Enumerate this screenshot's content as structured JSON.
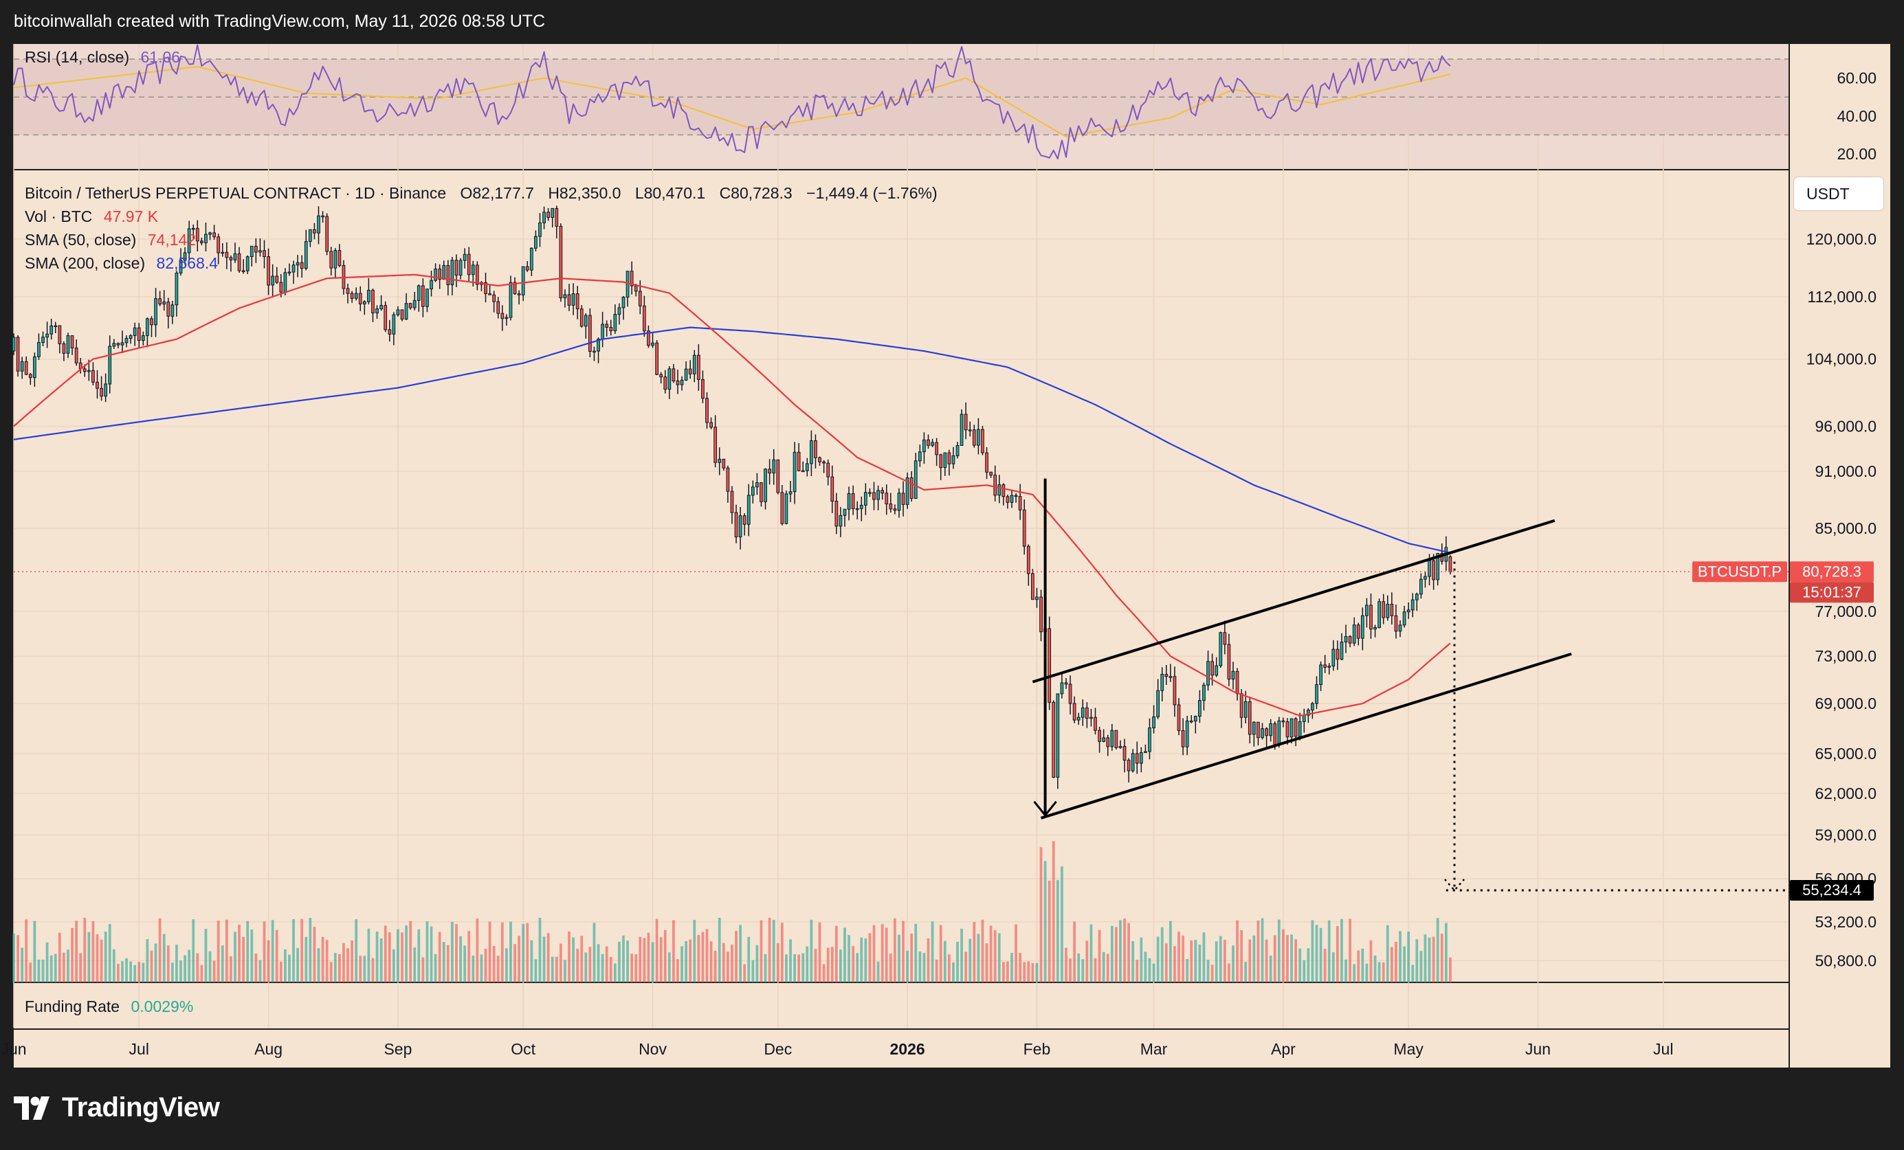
{
  "header": {
    "attribution": "bitcoinwallah created with TradingView.com, May 11, 2026 08:58 UTC"
  },
  "colors": {
    "background": "#f5e4d2",
    "up": "#26a69a",
    "down": "#ef5350",
    "sma50": "#e8383d",
    "sma200": "#2a3fd6",
    "rsi": "#7e57c2",
    "rsi_ma": "#f0c13c",
    "funding": "#22ab94"
  },
  "rsi_panel": {
    "label": "RSI (14, close)",
    "value": "61.06",
    "levels": [
      "60.00",
      "40.00",
      "20.00"
    ]
  },
  "legend": {
    "symbol": "Bitcoin / TetherUS PERPETUAL CONTRACT · 1D · Binance",
    "open": "O82,177.7",
    "high": "H82,350.0",
    "low": "L80,470.1",
    "close": "C80,728.3",
    "change": "−1,449.4 (−1.76%)",
    "vol_label": "Vol · BTC",
    "vol_value": "47.97 K",
    "sma50_label": "SMA (50, close)",
    "sma50_value": "74,142",
    "sma200_label": "SMA (200, close)",
    "sma200_value": "82,568.4"
  },
  "currency_button": "USDT",
  "price_axis": [
    "120,000.0",
    "112,000.0",
    "104,000.0",
    "96,000.0",
    "91,000.0",
    "85,000.0",
    "77,000.0",
    "73,000.0",
    "69,000.0",
    "65,000.0",
    "62,000.0",
    "59,000.0",
    "56,000.0",
    "53,200.0",
    "50,800.0"
  ],
  "last_price": {
    "symbol": "BTCUSDT.P",
    "price": "80,728.3",
    "countdown": "15:01:37"
  },
  "target_label": "55,234.4",
  "funding": {
    "label": "Funding Rate",
    "value": "0.0029%"
  },
  "time_axis": [
    "Jun",
    "Jul",
    "Aug",
    "Sep",
    "Oct",
    "Nov",
    "Dec",
    "2026",
    "Feb",
    "Mar",
    "Apr",
    "May",
    "Jun",
    "Jul"
  ],
  "brand": "TradingView",
  "chart_data": {
    "type": "candlestick",
    "interval": "1D",
    "y_scale": "log",
    "ylim": [
      49500,
      130000
    ],
    "x_range": [
      "2025-06-01",
      "2026-07-31"
    ],
    "close_path": [
      [
        "2025-06-01",
        105000
      ],
      [
        "2025-06-05",
        101500
      ],
      [
        "2025-06-10",
        109500
      ],
      [
        "2025-06-13",
        105500
      ],
      [
        "2025-06-17",
        104500
      ],
      [
        "2025-06-22",
        99000
      ],
      [
        "2025-06-24",
        106000
      ],
      [
        "2025-06-30",
        107000
      ],
      [
        "2025-07-03",
        109500
      ],
      [
        "2025-07-09",
        111000
      ],
      [
        "2025-07-11",
        117500
      ],
      [
        "2025-07-14",
        121500
      ],
      [
        "2025-07-20",
        118000
      ],
      [
        "2025-07-25",
        116000
      ],
      [
        "2025-07-30",
        118000
      ],
      [
        "2025-08-03",
        112500
      ],
      [
        "2025-08-08",
        116500
      ],
      [
        "2025-08-13",
        123500
      ],
      [
        "2025-08-16",
        117500
      ],
      [
        "2025-08-21",
        113500
      ],
      [
        "2025-08-27",
        110500
      ],
      [
        "2025-08-31",
        108500
      ],
      [
        "2025-09-05",
        111500
      ],
      [
        "2025-09-13",
        115500
      ],
      [
        "2025-09-18",
        117000
      ],
      [
        "2025-09-22",
        112500
      ],
      [
        "2025-09-25",
        109000
      ],
      [
        "2025-09-30",
        114000
      ],
      [
        "2025-10-06",
        124500
      ],
      [
        "2025-10-09",
        121500
      ],
      [
        "2025-10-10",
        113000
      ],
      [
        "2025-10-14",
        111500
      ],
      [
        "2025-10-17",
        106500
      ],
      [
        "2025-10-22",
        108000
      ],
      [
        "2025-10-27",
        115000
      ],
      [
        "2025-10-30",
        108000
      ],
      [
        "2025-11-04",
        101000
      ],
      [
        "2025-11-08",
        103000
      ],
      [
        "2025-11-11",
        104500
      ],
      [
        "2025-11-14",
        95000
      ],
      [
        "2025-11-18",
        92000
      ],
      [
        "2025-11-21",
        84000
      ],
      [
        "2025-11-25",
        88000
      ],
      [
        "2025-11-30",
        91000
      ],
      [
        "2025-12-02",
        86500
      ],
      [
        "2025-12-05",
        92000
      ],
      [
        "2025-12-10",
        93500
      ],
      [
        "2025-12-15",
        86500
      ],
      [
        "2025-12-20",
        88500
      ],
      [
        "2025-12-27",
        87500
      ],
      [
        "2026-01-02",
        89500
      ],
      [
        "2026-01-05",
        93500
      ],
      [
        "2026-01-10",
        91500
      ],
      [
        "2026-01-14",
        96500
      ],
      [
        "2026-01-18",
        95000
      ],
      [
        "2026-01-21",
        89500
      ],
      [
        "2026-01-26",
        88000
      ],
      [
        "2026-01-29",
        84500
      ],
      [
        "2026-01-31",
        78500
      ],
      [
        "2026-02-03",
        75000
      ],
      [
        "2026-02-05",
        63500
      ],
      [
        "2026-02-06",
        71000
      ],
      [
        "2026-02-10",
        68500
      ],
      [
        "2026-02-15",
        67000
      ],
      [
        "2026-02-20",
        66000
      ],
      [
        "2026-02-24",
        64000
      ],
      [
        "2026-02-28",
        67000
      ],
      [
        "2026-03-04",
        72500
      ],
      [
        "2026-03-08",
        66500
      ],
      [
        "2026-03-12",
        69500
      ],
      [
        "2026-03-17",
        74000
      ],
      [
        "2026-03-22",
        68500
      ],
      [
        "2026-03-27",
        66500
      ],
      [
        "2026-03-31",
        66500
      ],
      [
        "2026-04-04",
        67000
      ],
      [
        "2026-04-10",
        71500
      ],
      [
        "2026-04-15",
        74500
      ],
      [
        "2026-04-20",
        76000
      ],
      [
        "2026-04-26",
        77500
      ],
      [
        "2026-04-28",
        76000
      ],
      [
        "2026-05-02",
        78500
      ],
      [
        "2026-05-06",
        81000
      ],
      [
        "2026-05-10",
        82177.7
      ],
      [
        "2026-05-11",
        80728.3
      ]
    ],
    "last_candle": {
      "date": "2026-05-11",
      "open": 82177.7,
      "high": 82350.0,
      "low": 80470.1,
      "close": 80728.3
    },
    "sma50_path": [
      [
        "2025-06-01",
        96000
      ],
      [
        "2025-06-20",
        104000
      ],
      [
        "2025-07-10",
        106500
      ],
      [
        "2025-07-25",
        110500
      ],
      [
        "2025-08-15",
        114500
      ],
      [
        "2025-09-05",
        115000
      ],
      [
        "2025-09-25",
        113500
      ],
      [
        "2025-10-10",
        114500
      ],
      [
        "2025-10-25",
        114000
      ],
      [
        "2025-11-05",
        112500
      ],
      [
        "2025-11-20",
        105500
      ],
      [
        "2025-12-05",
        98500
      ],
      [
        "2025-12-20",
        92500
      ],
      [
        "2026-01-05",
        89000
      ],
      [
        "2026-01-20",
        89500
      ],
      [
        "2026-01-31",
        88500
      ],
      [
        "2026-02-10",
        83500
      ],
      [
        "2026-02-20",
        78500
      ],
      [
        "2026-03-05",
        73000
      ],
      [
        "2026-03-20",
        70000
      ],
      [
        "2026-04-05",
        68000
      ],
      [
        "2026-04-20",
        69000
      ],
      [
        "2026-05-01",
        71000
      ],
      [
        "2026-05-11",
        74142
      ]
    ],
    "sma200_path": [
      [
        "2025-06-01",
        94500
      ],
      [
        "2025-07-01",
        96500
      ],
      [
        "2025-08-01",
        98500
      ],
      [
        "2025-09-01",
        100500
      ],
      [
        "2025-10-01",
        103500
      ],
      [
        "2025-10-20",
        106500
      ],
      [
        "2025-11-10",
        108000
      ],
      [
        "2025-11-25",
        107500
      ],
      [
        "2025-12-15",
        106500
      ],
      [
        "2026-01-05",
        105000
      ],
      [
        "2026-01-25",
        103000
      ],
      [
        "2026-02-15",
        98500
      ],
      [
        "2026-03-05",
        94000
      ],
      [
        "2026-03-25",
        89500
      ],
      [
        "2026-04-15",
        86000
      ],
      [
        "2026-05-01",
        83500
      ],
      [
        "2026-05-11",
        82568.4
      ]
    ],
    "rsi": {
      "levels": [
        70,
        50,
        30
      ],
      "path": [
        [
          "2025-06-01",
          62
        ],
        [
          "2025-06-10",
          48
        ],
        [
          "2025-06-20",
          42
        ],
        [
          "2025-07-01",
          58
        ],
        [
          "2025-07-14",
          72
        ],
        [
          "2025-07-25",
          56
        ],
        [
          "2025-08-05",
          40
        ],
        [
          "2025-08-13",
          65
        ],
        [
          "2025-08-25",
          40
        ],
        [
          "2025-09-05",
          45
        ],
        [
          "2025-09-16",
          58
        ],
        [
          "2025-09-25",
          38
        ],
        [
          "2025-10-06",
          71
        ],
        [
          "2025-10-12",
          40
        ],
        [
          "2025-10-20",
          47
        ],
        [
          "2025-10-28",
          58
        ],
        [
          "2025-11-08",
          42
        ],
        [
          "2025-11-21",
          24
        ],
        [
          "2025-12-01",
          35
        ],
        [
          "2025-12-10",
          46
        ],
        [
          "2025-12-20",
          43
        ],
        [
          "2026-01-05",
          55
        ],
        [
          "2026-01-14",
          71
        ],
        [
          "2026-01-22",
          44
        ],
        [
          "2026-01-31",
          30
        ],
        [
          "2026-02-05",
          17
        ],
        [
          "2026-02-10",
          30
        ],
        [
          "2026-02-20",
          36
        ],
        [
          "2026-03-04",
          57
        ],
        [
          "2026-03-12",
          45
        ],
        [
          "2026-03-18",
          62
        ],
        [
          "2026-03-27",
          45
        ],
        [
          "2026-04-05",
          45
        ],
        [
          "2026-04-15",
          60
        ],
        [
          "2026-04-25",
          66
        ],
        [
          "2026-05-04",
          63
        ],
        [
          "2026-05-09",
          71
        ],
        [
          "2026-05-11",
          61.06
        ]
      ],
      "ma_path": [
        [
          "2025-06-01",
          55
        ],
        [
          "2025-07-15",
          66
        ],
        [
          "2025-08-10",
          52
        ],
        [
          "2025-09-10",
          49
        ],
        [
          "2025-10-06",
          60
        ],
        [
          "2025-11-05",
          48
        ],
        [
          "2025-11-25",
          33
        ],
        [
          "2025-12-20",
          42
        ],
        [
          "2026-01-15",
          60
        ],
        [
          "2026-02-08",
          29
        ],
        [
          "2026-03-05",
          39
        ],
        [
          "2026-03-20",
          54
        ],
        [
          "2026-04-10",
          46
        ],
        [
          "2026-05-11",
          62
        ]
      ]
    },
    "annotations": {
      "channel_upper": [
        [
          "2026-01-31",
          70800
        ],
        [
          "2026-06-05",
          85800
        ]
      ],
      "channel_lower": [
        [
          "2026-02-02",
          60200
        ],
        [
          "2026-06-09",
          73200
        ]
      ],
      "flagpole": [
        [
          "2026-02-03",
          90200
        ],
        [
          "2026-02-03",
          60400
        ]
      ],
      "measured_move": [
        [
          "2026-05-12",
          81700
        ],
        [
          "2026-05-12",
          55234.4
        ]
      ],
      "target_level": 55234.4
    }
  }
}
